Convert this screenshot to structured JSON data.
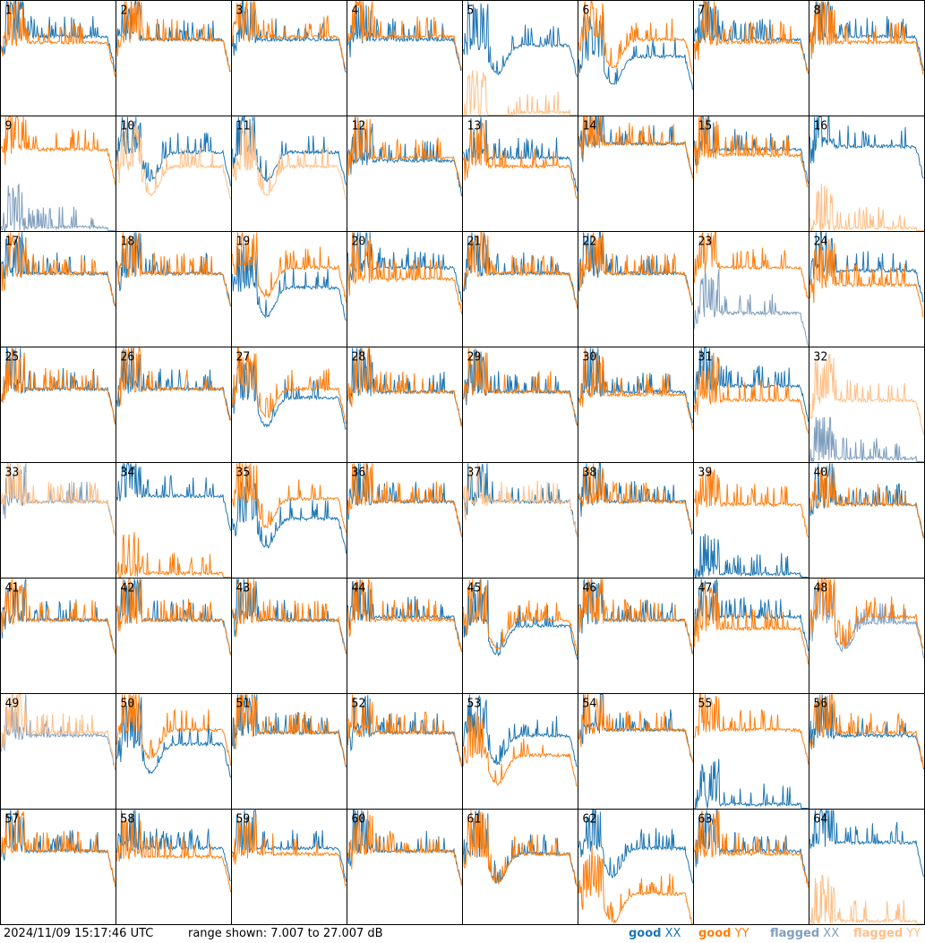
{
  "chart_data": {
    "type": "line",
    "grid_rows": 8,
    "grid_cols": 8,
    "timestamp": "2024/11/09 15:17:46 UTC",
    "range_text": "range shown: 7.007 to 27.007 dB",
    "ylim": [
      7.007,
      27.007
    ],
    "legend": [
      {
        "label": "good",
        "pol": "XX",
        "color": "#1f77b4"
      },
      {
        "label": "good",
        "pol": "YY",
        "color": "#ff7f0e"
      },
      {
        "label": "flagged",
        "pol": "XX",
        "color": "#7f9fbf"
      },
      {
        "label": "flagged",
        "pol": "YY",
        "color": "#ffbf87"
      }
    ],
    "colors": {
      "good_xx": "#1f77b4",
      "good_yy": "#ff7f0e",
      "flagged_xx": "#7f9fbf",
      "flagged_yy": "#ffbf87"
    },
    "panels": [
      {
        "label": "1",
        "xx": "good",
        "yy": "good",
        "shape": "normal",
        "xx_level": 20.5,
        "yy_level": 19.5
      },
      {
        "label": "2",
        "xx": "good",
        "yy": "good",
        "shape": "normal",
        "xx_level": 20.0,
        "yy_level": 20.0
      },
      {
        "label": "3",
        "xx": "good",
        "yy": "good",
        "shape": "normal",
        "xx_level": 20.0,
        "yy_level": 20.5
      },
      {
        "label": "4",
        "xx": "good",
        "yy": "good",
        "shape": "normal",
        "xx_level": 20.0,
        "yy_level": 20.5
      },
      {
        "label": "5",
        "xx": "good",
        "yy": "flagged",
        "shape": "dip",
        "xx_level": 19.0,
        "yy_level": 7.2
      },
      {
        "label": "6",
        "xx": "good",
        "yy": "good",
        "shape": "dip",
        "xx_level": 17.0,
        "yy_level": 20.0
      },
      {
        "label": "7",
        "xx": "good",
        "yy": "good",
        "shape": "normal",
        "xx_level": 20.0,
        "yy_level": 19.5
      },
      {
        "label": "8",
        "xx": "good",
        "yy": "good",
        "shape": "normal",
        "xx_level": 20.5,
        "yy_level": 19.5
      },
      {
        "label": "9",
        "xx": "flagged",
        "yy": "good",
        "shape": "normal",
        "xx_level": 7.3,
        "yy_level": 21.0
      },
      {
        "label": "10",
        "xx": "good",
        "yy": "flagged",
        "shape": "dip",
        "xx_level": 20.5,
        "yy_level": 18.0
      },
      {
        "label": "11",
        "xx": "good",
        "yy": "flagged",
        "shape": "dip",
        "xx_level": 20.5,
        "yy_level": 18.0
      },
      {
        "label": "12",
        "xx": "good",
        "yy": "good",
        "shape": "normal",
        "xx_level": 19.0,
        "yy_level": 19.5
      },
      {
        "label": "13",
        "xx": "good",
        "yy": "good",
        "shape": "normal",
        "xx_level": 19.5,
        "yy_level": 18.0
      },
      {
        "label": "14",
        "xx": "good",
        "yy": "good",
        "shape": "normal",
        "xx_level": 22.0,
        "yy_level": 22.0
      },
      {
        "label": "15",
        "xx": "good",
        "yy": "good",
        "shape": "normal",
        "xx_level": 21.0,
        "yy_level": 20.0
      },
      {
        "label": "16",
        "xx": "good",
        "yy": "flagged",
        "shape": "normal",
        "xx_level": 21.5,
        "yy_level": 7.2
      },
      {
        "label": "17",
        "xx": "good",
        "yy": "good",
        "shape": "normal",
        "xx_level": 19.5,
        "yy_level": 19.5
      },
      {
        "label": "18",
        "xx": "good",
        "yy": "good",
        "shape": "normal",
        "xx_level": 19.5,
        "yy_level": 19.5
      },
      {
        "label": "19",
        "xx": "good",
        "yy": "good",
        "shape": "dip",
        "xx_level": 17.0,
        "yy_level": 20.5
      },
      {
        "label": "20",
        "xx": "good",
        "yy": "good",
        "shape": "normal",
        "xx_level": 20.5,
        "yy_level": 18.5
      },
      {
        "label": "21",
        "xx": "good",
        "yy": "good",
        "shape": "normal",
        "xx_level": 19.5,
        "yy_level": 19.5
      },
      {
        "label": "22",
        "xx": "good",
        "yy": "good",
        "shape": "normal",
        "xx_level": 19.5,
        "yy_level": 19.5
      },
      {
        "label": "23",
        "xx": "flagged",
        "yy": "good",
        "shape": "normal",
        "xx_level": 12.5,
        "yy_level": 20.5
      },
      {
        "label": "24",
        "xx": "good",
        "yy": "good",
        "shape": "normal",
        "xx_level": 20.0,
        "yy_level": 17.5
      },
      {
        "label": "25",
        "xx": "good",
        "yy": "good",
        "shape": "normal",
        "xx_level": 19.5,
        "yy_level": 19.5
      },
      {
        "label": "26",
        "xx": "good",
        "yy": "good",
        "shape": "normal",
        "xx_level": 19.5,
        "yy_level": 19.5
      },
      {
        "label": "27",
        "xx": "good",
        "yy": "good",
        "shape": "dip",
        "xx_level": 18.0,
        "yy_level": 19.5
      },
      {
        "label": "28",
        "xx": "good",
        "yy": "good",
        "shape": "normal",
        "xx_level": 19.0,
        "yy_level": 19.0
      },
      {
        "label": "29",
        "xx": "good",
        "yy": "good",
        "shape": "normal",
        "xx_level": 19.0,
        "yy_level": 19.0
      },
      {
        "label": "30",
        "xx": "good",
        "yy": "good",
        "shape": "normal",
        "xx_level": 19.0,
        "yy_level": 18.5
      },
      {
        "label": "31",
        "xx": "good",
        "yy": "good",
        "shape": "normal",
        "xx_level": 20.0,
        "yy_level": 17.5
      },
      {
        "label": "32",
        "xx": "flagged",
        "yy": "flagged",
        "shape": "normal",
        "xx_level": 7.3,
        "yy_level": 17.5
      },
      {
        "label": "33",
        "xx": "flagged",
        "yy": "flagged",
        "shape": "normal",
        "xx_level": 20.0,
        "yy_level": 20.0
      },
      {
        "label": "34",
        "xx": "good",
        "yy": "good",
        "shape": "normal",
        "xx_level": 21.0,
        "yy_level": 7.4
      },
      {
        "label": "35",
        "xx": "good",
        "yy": "good",
        "shape": "dip",
        "xx_level": 17.0,
        "yy_level": 20.5
      },
      {
        "label": "36",
        "xx": "good",
        "yy": "good",
        "shape": "normal",
        "xx_level": 20.0,
        "yy_level": 20.0
      },
      {
        "label": "37",
        "xx": "good",
        "yy": "flagged",
        "shape": "normal",
        "xx_level": 20.0,
        "yy_level": 20.0
      },
      {
        "label": "38",
        "xx": "good",
        "yy": "good",
        "shape": "normal",
        "xx_level": 20.0,
        "yy_level": 20.0
      },
      {
        "label": "39",
        "xx": "good",
        "yy": "good",
        "shape": "normal",
        "xx_level": 7.3,
        "yy_level": 19.5
      },
      {
        "label": "40",
        "xx": "good",
        "yy": "good",
        "shape": "normal",
        "xx_level": 19.5,
        "yy_level": 19.5
      },
      {
        "label": "41",
        "xx": "good",
        "yy": "good",
        "shape": "normal",
        "xx_level": 19.5,
        "yy_level": 19.5
      },
      {
        "label": "42",
        "xx": "good",
        "yy": "good",
        "shape": "normal",
        "xx_level": 19.5,
        "yy_level": 19.5
      },
      {
        "label": "43",
        "xx": "good",
        "yy": "good",
        "shape": "normal",
        "xx_level": 19.5,
        "yy_level": 19.5
      },
      {
        "label": "44",
        "xx": "good",
        "yy": "good",
        "shape": "normal",
        "xx_level": 20.0,
        "yy_level": 19.5
      },
      {
        "label": "45",
        "xx": "good",
        "yy": "good",
        "shape": "dip",
        "xx_level": 18.5,
        "yy_level": 19.5
      },
      {
        "label": "46",
        "xx": "good",
        "yy": "good",
        "shape": "normal",
        "xx_level": 19.5,
        "yy_level": 19.5
      },
      {
        "label": "47",
        "xx": "good",
        "yy": "good",
        "shape": "normal",
        "xx_level": 20.0,
        "yy_level": 18.0
      },
      {
        "label": "48",
        "xx": "flagged",
        "yy": "good",
        "shape": "dip",
        "xx_level": 19.0,
        "yy_level": 20.0
      },
      {
        "label": "49",
        "xx": "flagged",
        "yy": "flagged",
        "shape": "normal",
        "xx_level": 19.5,
        "yy_level": 20.0
      },
      {
        "label": "50",
        "xx": "good",
        "yy": "good",
        "shape": "dip",
        "xx_level": 18.0,
        "yy_level": 20.5
      },
      {
        "label": "51",
        "xx": "good",
        "yy": "good",
        "shape": "normal",
        "xx_level": 20.0,
        "yy_level": 20.0
      },
      {
        "label": "52",
        "xx": "good",
        "yy": "good",
        "shape": "normal",
        "xx_level": 20.0,
        "yy_level": 20.0
      },
      {
        "label": "53",
        "xx": "good",
        "yy": "good",
        "shape": "dip",
        "xx_level": 19.5,
        "yy_level": 16.0
      },
      {
        "label": "54",
        "xx": "good",
        "yy": "good",
        "shape": "normal",
        "xx_level": 20.5,
        "yy_level": 20.5
      },
      {
        "label": "55",
        "xx": "good",
        "yy": "good",
        "shape": "normal",
        "xx_level": 7.4,
        "yy_level": 20.5
      },
      {
        "label": "56",
        "xx": "good",
        "yy": "good",
        "shape": "normal",
        "xx_level": 19.5,
        "yy_level": 20.0
      },
      {
        "label": "57",
        "xx": "good",
        "yy": "good",
        "shape": "normal",
        "xx_level": 19.5,
        "yy_level": 19.5
      },
      {
        "label": "58",
        "xx": "good",
        "yy": "good",
        "shape": "normal",
        "xx_level": 20.0,
        "yy_level": 18.5
      },
      {
        "label": "59",
        "xx": "good",
        "yy": "good",
        "shape": "normal",
        "xx_level": 20.0,
        "yy_level": 19.0
      },
      {
        "label": "60",
        "xx": "good",
        "yy": "good",
        "shape": "normal",
        "xx_level": 19.5,
        "yy_level": 19.5
      },
      {
        "label": "61",
        "xx": "good",
        "yy": "good",
        "shape": "dip",
        "xx_level": 19.0,
        "yy_level": 19.0
      },
      {
        "label": "62",
        "xx": "good",
        "yy": "good",
        "shape": "dip",
        "xx_level": 20.0,
        "yy_level": 12.0
      },
      {
        "label": "63",
        "xx": "good",
        "yy": "good",
        "shape": "normal",
        "xx_level": 19.5,
        "yy_level": 19.0
      },
      {
        "label": "64",
        "xx": "good",
        "yy": "flagged",
        "shape": "normal",
        "xx_level": 21.0,
        "yy_level": 7.2
      }
    ]
  }
}
